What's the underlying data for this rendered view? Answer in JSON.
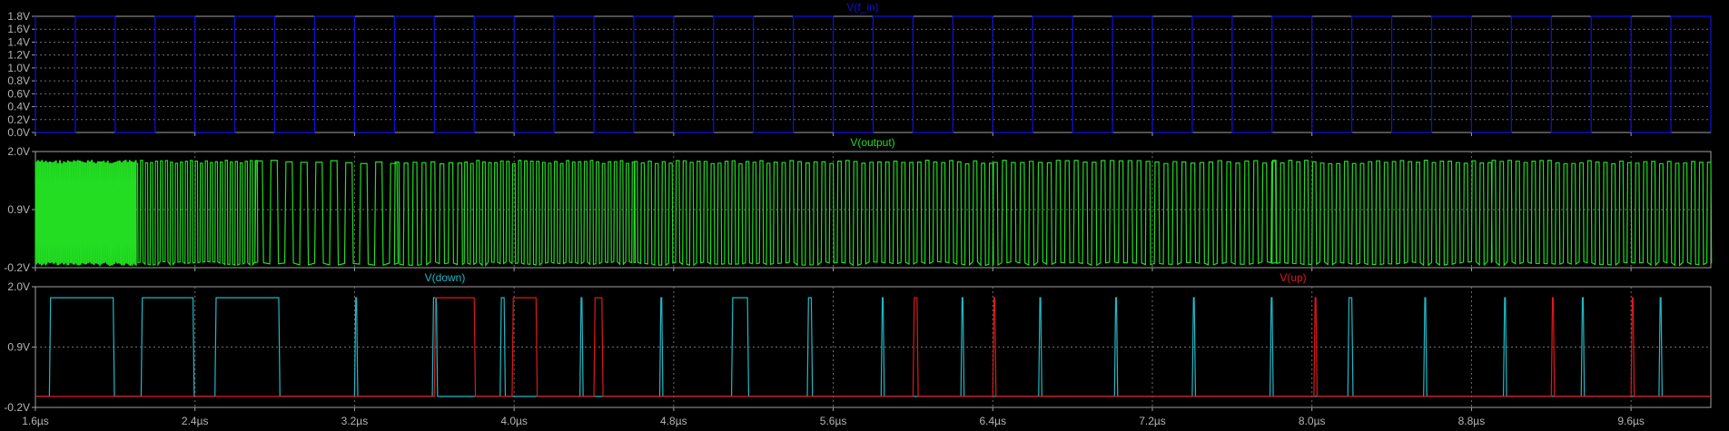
{
  "chart_data": {
    "type": "line",
    "x_unit": "µs",
    "xlim": [
      1.6,
      10.0
    ],
    "xticks": [
      1.6,
      2.4,
      3.2,
      4.0,
      4.8,
      5.6,
      6.4,
      7.2,
      8.0,
      8.8,
      9.6
    ],
    "xtick_labels": [
      "1.6µs",
      "2.4µs",
      "3.2µs",
      "4.0µs",
      "4.8µs",
      "5.6µs",
      "6.4µs",
      "7.2µs",
      "8.0µs",
      "8.8µs",
      "9.6µs"
    ],
    "grid": true,
    "panes": [
      {
        "ylim": [
          0,
          1.8
        ],
        "yticks": [
          0,
          0.2,
          0.4,
          0.6,
          0.8,
          1.0,
          1.2,
          1.4,
          1.6,
          1.8
        ],
        "ytick_labels": [
          "0.0V",
          "0.2V",
          "0.4V",
          "0.6V",
          "0.8V",
          "1.0V",
          "1.2V",
          "1.4V",
          "1.6V",
          "1.8V"
        ],
        "series": [
          {
            "name": "V(f_in)",
            "color": "#1010e0",
            "kind": "square",
            "high": 1.8,
            "low": 0,
            "period": 0.4,
            "rise_times": [
              1.8,
              2.2,
              2.6,
              3.0,
              3.4,
              3.8,
              4.2,
              4.6,
              5.0,
              5.4,
              5.8,
              6.2,
              6.6,
              7.0,
              7.4,
              7.8,
              8.2,
              8.6,
              9.0,
              9.4,
              9.8
            ],
            "fall_times": [
              1.6,
              2.0,
              2.4,
              2.8,
              3.2,
              3.6,
              4.0,
              4.4,
              4.8,
              5.2,
              5.6,
              6.0,
              6.4,
              6.8,
              7.2,
              7.6,
              8.0,
              8.4,
              8.8,
              9.2,
              9.6,
              10.0
            ]
          }
        ]
      },
      {
        "ylim": [
          -0.2,
          2.0
        ],
        "yticks": [
          -0.2,
          0.9,
          2.0
        ],
        "ytick_labels": [
          "-0.2V",
          "0.9V",
          "2.0V"
        ],
        "series": [
          {
            "name": "V(output)",
            "color": "#22dd22",
            "kind": "oscillation",
            "high": 1.8,
            "low": -0.12,
            "segments": [
              {
                "start": 1.6,
                "end": 2.1,
                "period": 0.01
              },
              {
                "start": 2.1,
                "end": 2.7,
                "period": 0.025
              },
              {
                "start": 2.7,
                "end": 3.4,
                "period": 0.075
              },
              {
                "start": 3.4,
                "end": 3.75,
                "period": 0.045
              },
              {
                "start": 3.75,
                "end": 4.6,
                "period": 0.03
              },
              {
                "start": 4.6,
                "end": 5.3,
                "period": 0.035
              },
              {
                "start": 5.3,
                "end": 6.4,
                "period": 0.04
              },
              {
                "start": 6.4,
                "end": 7.8,
                "period": 0.045
              },
              {
                "start": 7.8,
                "end": 8.9,
                "period": 0.04
              },
              {
                "start": 8.9,
                "end": 10.0,
                "period": 0.04
              }
            ]
          }
        ]
      },
      {
        "ylim": [
          -0.2,
          2.0
        ],
        "yticks": [
          -0.2,
          0.9,
          2.0
        ],
        "ytick_labels": [
          "-0.2V",
          "0.9V",
          "2.0V"
        ],
        "series": [
          {
            "name": "V(down)",
            "color": "#20b8c8",
            "kind": "pulses",
            "high": 1.8,
            "low": 0,
            "pulses": [
              [
                1.67,
                1.99
              ],
              [
                2.13,
                2.39
              ],
              [
                2.5,
                2.82
              ],
              [
                3.2,
                3.21
              ],
              [
                3.59,
                3.61
              ],
              [
                3.93,
                3.95
              ],
              [
                4.33,
                4.34
              ],
              [
                4.73,
                4.74
              ],
              [
                5.09,
                5.17
              ],
              [
                5.47,
                5.49
              ],
              [
                5.84,
                5.85
              ],
              [
                6.24,
                6.25
              ],
              [
                6.63,
                6.64
              ],
              [
                7.01,
                7.02
              ],
              [
                7.4,
                7.41
              ],
              [
                7.79,
                7.8
              ],
              [
                8.18,
                8.2
              ],
              [
                8.56,
                8.57
              ],
              [
                8.96,
                8.97
              ],
              [
                9.35,
                9.36
              ],
              [
                9.74,
                9.75
              ]
            ]
          },
          {
            "name": "V(up)",
            "color": "#e01818",
            "kind": "pulses",
            "high": 1.8,
            "low": 0,
            "pulses": [
              [
                3.6,
                3.8
              ],
              [
                3.99,
                4.11
              ],
              [
                4.4,
                4.44
              ],
              [
                6.0,
                6.02
              ],
              [
                6.4,
                6.41
              ],
              [
                8.01,
                8.02
              ],
              [
                9.2,
                9.21
              ],
              [
                9.6,
                9.61
              ]
            ]
          }
        ]
      }
    ]
  }
}
